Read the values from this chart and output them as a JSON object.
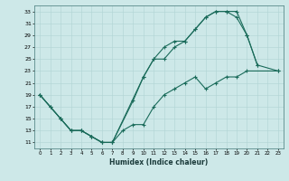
{
  "xlabel": "Humidex (Indice chaleur)",
  "bg_color": "#cde8e8",
  "line_color": "#1a6b5a",
  "grid_color": "#b0d4d4",
  "xlim": [
    -0.5,
    23.5
  ],
  "ylim": [
    10,
    34
  ],
  "xticks": [
    0,
    1,
    2,
    3,
    4,
    5,
    6,
    7,
    8,
    9,
    10,
    11,
    12,
    13,
    14,
    15,
    16,
    17,
    18,
    19,
    20,
    21,
    22,
    23
  ],
  "yticks": [
    11,
    13,
    15,
    17,
    19,
    21,
    23,
    25,
    27,
    29,
    31,
    33
  ],
  "line1_x": [
    0,
    1,
    2,
    3,
    4,
    5,
    6,
    7,
    9,
    10,
    11,
    12,
    13,
    14,
    15,
    16,
    17,
    18,
    19,
    20,
    21
  ],
  "line1_y": [
    19,
    17,
    15,
    13,
    13,
    12,
    11,
    11,
    18,
    22,
    25,
    25,
    27,
    28,
    30,
    32,
    33,
    33,
    33,
    29,
    24
  ],
  "line2_x": [
    0,
    1,
    2,
    3,
    4,
    5,
    6,
    7,
    10,
    11,
    12,
    13,
    14,
    15,
    16,
    17,
    18,
    19,
    20,
    21,
    23
  ],
  "line2_y": [
    19,
    17,
    15,
    13,
    13,
    12,
    11,
    11,
    22,
    25,
    27,
    28,
    28,
    30,
    32,
    33,
    33,
    32,
    29,
    24,
    23
  ],
  "line3_x": [
    0,
    2,
    3,
    4,
    5,
    6,
    7,
    8,
    9,
    10,
    11,
    12,
    13,
    14,
    15,
    16,
    17,
    18,
    19,
    20,
    23
  ],
  "line3_y": [
    19,
    15,
    13,
    13,
    12,
    11,
    11,
    13,
    14,
    14,
    17,
    19,
    20,
    21,
    22,
    20,
    21,
    22,
    22,
    23,
    23
  ]
}
